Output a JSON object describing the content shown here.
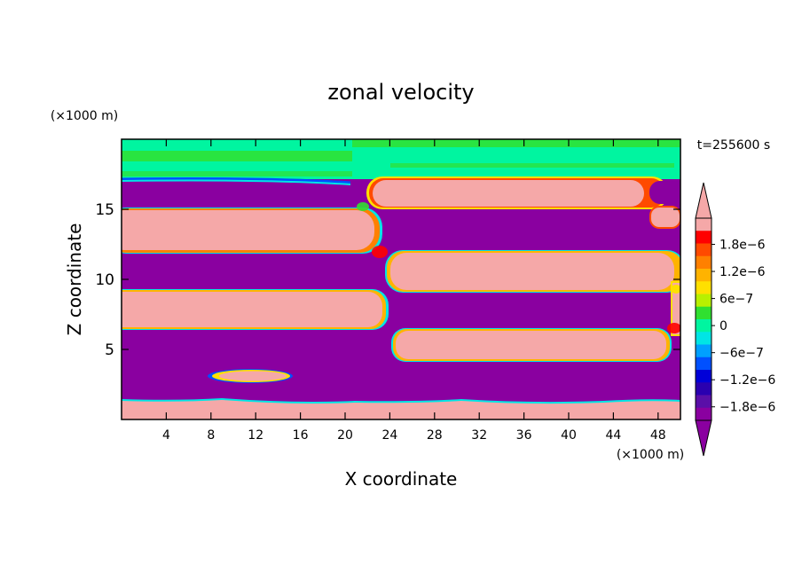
{
  "chart_data": {
    "type": "heatmap",
    "title": "zonal velocity",
    "xlabel": "X coordinate",
    "ylabel": "Z coordinate",
    "x_unit": "(×1000 m)",
    "y_unit": "(×1000 m)",
    "time_label": "t=255600 s",
    "xlim": [
      0,
      50
    ],
    "ylim": [
      0,
      20
    ],
    "x_ticks": [
      4,
      8,
      12,
      16,
      20,
      24,
      28,
      32,
      36,
      40,
      44,
      48
    ],
    "y_ticks": [
      5,
      10,
      15
    ],
    "colorbar": {
      "labels": [
        "1.8e−6",
        "1.2e−6",
        "6e−7",
        "0",
        "−6e−7",
        "−1.2e−6",
        "−1.8e−6"
      ],
      "label_values": [
        1.8e-06,
        1.2e-06,
        6e-07,
        0,
        -6e-07,
        -1.2e-06,
        -1.8e-06
      ],
      "levels": [
        2.1e-06,
        1.8e-06,
        1.5e-06,
        1.2e-06,
        9e-07,
        6e-07,
        3e-07,
        0,
        -3e-07,
        -6e-07,
        -9e-07,
        -1.2e-06,
        -1.5e-06,
        -1.8e-06,
        -2.1e-06
      ],
      "colors": [
        "#f5a8a8",
        "#ff0000",
        "#ff4a00",
        "#ff8000",
        "#ffb300",
        "#ffe000",
        "#b8f000",
        "#30e030",
        "#00f5a0",
        "#00e5e5",
        "#00a0ff",
        "#0050ff",
        "#0000d8",
        "#2a00b0",
        "#5a0fa8",
        "#8a00a0"
      ]
    },
    "regions": [
      {
        "sign": "positive",
        "x": [
          0,
          50
        ],
        "z": [
          0.3,
          1.6
        ],
        "label": "bottom layer"
      },
      {
        "sign": "negative",
        "x": [
          0,
          50
        ],
        "z": [
          1.6,
          6.3
        ]
      },
      {
        "sign": "positive",
        "x": [
          8,
          15
        ],
        "z": [
          2.8,
          3.4
        ],
        "label": "small lens"
      },
      {
        "sign": "positive",
        "x": [
          0,
          23
        ],
        "z": [
          6.3,
          9.2
        ]
      },
      {
        "sign": "positive",
        "x": [
          24,
          49
        ],
        "z": [
          4.2,
          6.2
        ]
      },
      {
        "sign": "negative",
        "x": [
          0,
          50
        ],
        "z": [
          9.2,
          12.3
        ]
      },
      {
        "sign": "positive",
        "x": [
          0,
          22
        ],
        "z": [
          12.3,
          14.9
        ]
      },
      {
        "sign": "positive",
        "x": [
          24,
          49
        ],
        "z": [
          9.2,
          12
        ]
      },
      {
        "sign": "negative",
        "x": [
          0,
          50
        ],
        "z": [
          14.9,
          17
        ]
      },
      {
        "sign": "positive",
        "x": [
          22,
          46
        ],
        "z": [
          14.9,
          17
        ]
      },
      {
        "sign": "near-zero",
        "x": [
          0,
          50
        ],
        "z": [
          17,
          20
        ],
        "label": "top layer"
      }
    ]
  }
}
